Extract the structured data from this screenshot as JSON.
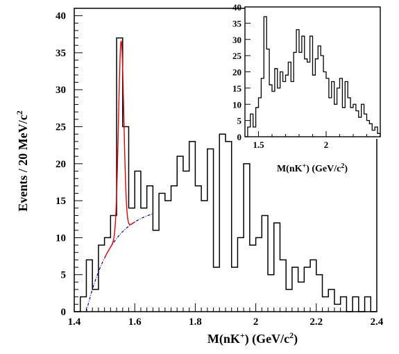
{
  "chart_data": [
    {
      "type": "histogram",
      "title": "",
      "xlabel": "M(nK",
      "xlabel_sup": "+",
      "xlabel_unit": ")  (GeV/c",
      "xlabel_sup2": "2",
      "xlabel_end": ")",
      "ylabel": "Events / 20 MeV/c",
      "ylabel_sup": "2",
      "xlim": [
        1.4,
        2.4
      ],
      "ylim": [
        0,
        41
      ],
      "xticks": [
        1.4,
        1.6,
        1.8,
        2.0,
        2.2,
        2.4
      ],
      "xtick_labels": [
        "1.4",
        "1.6",
        "1.8",
        "2",
        "2.2",
        "2.4"
      ],
      "yticks": [
        0,
        5,
        10,
        15,
        20,
        25,
        30,
        35,
        40
      ],
      "ytick_labels": [
        "0",
        "5",
        "10",
        "15",
        "20",
        "25",
        "30",
        "35",
        "40"
      ],
      "bin_width": 0.02,
      "bin_start": 1.4,
      "values": [
        0,
        2,
        7,
        3,
        9,
        10,
        13,
        37,
        25,
        14,
        19,
        14,
        17,
        11,
        16,
        15,
        17,
        21,
        19,
        23,
        17,
        15,
        22,
        6,
        24,
        23,
        6,
        10,
        20,
        9,
        10,
        13,
        5,
        12,
        7,
        3,
        6,
        4,
        6,
        7,
        5,
        2,
        3,
        1,
        2,
        0,
        2,
        0,
        2,
        0
      ],
      "fit_peak": {
        "mean": 1.555,
        "sigma": 0.0087,
        "amplitude": 26.0,
        "color": "#e00000",
        "xrange": [
          1.5,
          1.6
        ]
      },
      "fit_background": {
        "threshold": 1.44,
        "plateau": 14.3,
        "scale": 0.085,
        "color": "#0000cc",
        "xrange": [
          1.44,
          1.66
        ]
      },
      "grid": false
    },
    {
      "type": "histogram",
      "title": "",
      "xlabel": "M(nK",
      "xlabel_sup": "+",
      "xlabel_unit": ") (GeV/c",
      "xlabel_sup2": "2",
      "xlabel_end": ")",
      "xlim": [
        1.4,
        2.4
      ],
      "ylim": [
        0,
        40
      ],
      "xticks": [
        1.5,
        2.0
      ],
      "xtick_labels": [
        "1.5",
        "2"
      ],
      "yticks": [
        0,
        5,
        10,
        15,
        20,
        25,
        30,
        35,
        40
      ],
      "ytick_labels": [
        "0",
        "5",
        "10",
        "15",
        "20",
        "25",
        "30",
        "35",
        "40"
      ],
      "bin_width": 0.02,
      "bin_start": 1.4,
      "values": [
        0,
        3,
        7,
        3,
        9,
        12,
        18,
        37,
        27,
        16,
        14,
        21,
        15,
        20,
        17,
        19,
        23,
        17,
        26,
        33,
        26,
        31,
        24,
        23,
        31,
        19,
        24,
        28,
        25,
        20,
        18,
        12,
        17,
        10,
        15,
        18,
        9,
        17,
        12,
        9,
        10,
        8,
        6,
        10,
        7,
        5,
        4,
        2,
        3,
        1
      ],
      "grid": false
    }
  ]
}
